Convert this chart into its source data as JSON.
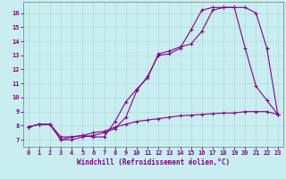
{
  "xlabel": "Windchill (Refroidissement éolien,°C)",
  "background_color": "#c8eef0",
  "grid_color": "#b0d8dc",
  "line_color": "#880088",
  "xlim": [
    -0.5,
    23.5
  ],
  "ylim": [
    6.5,
    16.8
  ],
  "yticks": [
    7,
    8,
    9,
    10,
    11,
    12,
    13,
    14,
    15,
    16
  ],
  "xticks": [
    0,
    1,
    2,
    3,
    4,
    5,
    6,
    7,
    8,
    9,
    10,
    11,
    12,
    13,
    14,
    15,
    16,
    17,
    18,
    19,
    20,
    21,
    22,
    23
  ],
  "series1_x": [
    0,
    1,
    2,
    3,
    4,
    5,
    6,
    7,
    8,
    9,
    10,
    11,
    12,
    13,
    14,
    15,
    16,
    17,
    18,
    19,
    20,
    21,
    22,
    23
  ],
  "series1_y": [
    7.9,
    8.1,
    8.1,
    7.0,
    7.2,
    7.3,
    7.2,
    7.2,
    8.3,
    9.7,
    10.6,
    11.4,
    13.1,
    13.3,
    13.6,
    13.8,
    14.7,
    16.2,
    16.4,
    16.4,
    13.5,
    10.8,
    9.8,
    8.8
  ],
  "series2_x": [
    0,
    1,
    2,
    3,
    4,
    5,
    6,
    7,
    8,
    9,
    10,
    11,
    12,
    13,
    14,
    15,
    16,
    17,
    18,
    19,
    20,
    21,
    22,
    23
  ],
  "series2_y": [
    7.9,
    8.1,
    8.1,
    7.0,
    7.0,
    7.2,
    7.3,
    7.5,
    7.8,
    8.6,
    10.5,
    11.5,
    13.0,
    13.1,
    13.5,
    14.8,
    16.2,
    16.4,
    16.4,
    16.4,
    16.4,
    16.0,
    13.5,
    8.8
  ],
  "series3_x": [
    0,
    1,
    2,
    3,
    4,
    5,
    6,
    7,
    8,
    9,
    10,
    11,
    12,
    13,
    14,
    15,
    16,
    17,
    18,
    19,
    20,
    21,
    22,
    23
  ],
  "series3_y": [
    7.9,
    8.1,
    8.1,
    7.2,
    7.2,
    7.3,
    7.5,
    7.6,
    7.9,
    8.1,
    8.3,
    8.4,
    8.5,
    8.6,
    8.7,
    8.75,
    8.8,
    8.85,
    8.9,
    8.9,
    9.0,
    9.0,
    9.0,
    8.8
  ]
}
